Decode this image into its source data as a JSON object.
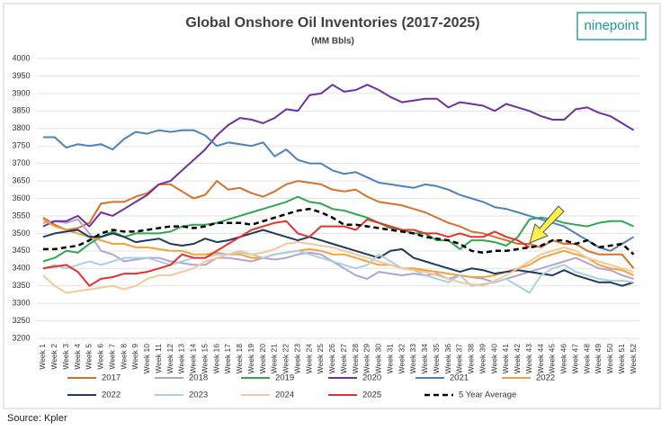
{
  "chart_data": {
    "type": "line",
    "title": "Global Onshore Oil Inventories (2017-2025)",
    "subtitle": "(MM Bbls)",
    "logo": "ninepoint",
    "source": "Source: Kpler",
    "ylim": [
      3200,
      4000
    ],
    "yticks": [
      3200,
      3250,
      3300,
      3350,
      3400,
      3450,
      3500,
      3550,
      3600,
      3650,
      3700,
      3750,
      3800,
      3850,
      3900,
      3950,
      4000
    ],
    "grid": true,
    "legend": "bottom",
    "categories": [
      "Week 1",
      "Week 2",
      "Week 3",
      "Week 4",
      "Week 5",
      "Week 6",
      "Week 7",
      "Week 8",
      "Week 9",
      "Week 10",
      "Week 11",
      "Week 12",
      "Week 13",
      "Week 14",
      "Week 15",
      "Week 16",
      "Week 17",
      "Week 18",
      "Week 19",
      "Week 20",
      "Week 21",
      "Week 22",
      "Week 23",
      "Week 24",
      "Week 25",
      "Week 26",
      "Week 27",
      "Week 28",
      "Week 29",
      "Week 30",
      "Week 31",
      "Week 32",
      "Week 33",
      "Week 34",
      "Week 35",
      "Week 36",
      "Week 37",
      "Week 38",
      "Week 39",
      "Week 40",
      "Week 41",
      "Week 42",
      "Week 43",
      "Week 44",
      "Week 45",
      "Week 46",
      "Week 47",
      "Week 48",
      "Week 49",
      "Week 50",
      "Week 51",
      "Week 52"
    ],
    "series": [
      {
        "name": "2017",
        "color": "#d9702a",
        "values": [
          3545,
          3525,
          3510,
          3515,
          3530,
          3585,
          3590,
          3590,
          3605,
          3615,
          3640,
          3640,
          3620,
          3600,
          3610,
          3650,
          3625,
          3630,
          3615,
          3605,
          3620,
          3640,
          3650,
          3645,
          3640,
          3625,
          3620,
          3625,
          3605,
          3590,
          3585,
          3580,
          3570,
          3560,
          3545,
          3530,
          3520,
          3505,
          3500,
          3490,
          3480,
          3470,
          3470,
          3460,
          3480,
          3470,
          3470,
          3450,
          3440,
          3440,
          3440,
          3400
        ]
      },
      {
        "name": "2018",
        "color": "#b3a2d6",
        "values": [
          3530,
          3535,
          3530,
          3540,
          3500,
          3450,
          3440,
          3420,
          3425,
          3430,
          3430,
          3420,
          3415,
          3410,
          3410,
          3430,
          3430,
          3425,
          3420,
          3430,
          3425,
          3430,
          3440,
          3445,
          3440,
          3420,
          3400,
          3380,
          3370,
          3390,
          3385,
          3380,
          3385,
          3380,
          3385,
          3370,
          3380,
          3375,
          3370,
          3360,
          3370,
          3380,
          3390,
          3400,
          3410,
          3420,
          3430,
          3415,
          3400,
          3395,
          3380,
          3370
        ]
      },
      {
        "name": "2019",
        "color": "#2fa84f",
        "values": [
          3420,
          3430,
          3450,
          3445,
          3470,
          3490,
          3505,
          3490,
          3500,
          3500,
          3500,
          3505,
          3520,
          3525,
          3525,
          3530,
          3540,
          3550,
          3560,
          3570,
          3580,
          3590,
          3605,
          3590,
          3585,
          3570,
          3565,
          3555,
          3545,
          3530,
          3515,
          3510,
          3500,
          3500,
          3480,
          3480,
          3455,
          3480,
          3480,
          3475,
          3465,
          3490,
          3540,
          3545,
          3540,
          3530,
          3525,
          3520,
          3530,
          3535,
          3535,
          3520
        ]
      },
      {
        "name": "2020",
        "color": "#7030a0",
        "values": [
          3520,
          3535,
          3535,
          3550,
          3520,
          3560,
          3550,
          3570,
          3590,
          3610,
          3640,
          3650,
          3680,
          3710,
          3740,
          3780,
          3810,
          3830,
          3825,
          3815,
          3830,
          3855,
          3850,
          3895,
          3900,
          3925,
          3905,
          3910,
          3925,
          3910,
          3890,
          3875,
          3880,
          3885,
          3885,
          3860,
          3875,
          3870,
          3865,
          3850,
          3870,
          3860,
          3850,
          3835,
          3825,
          3825,
          3855,
          3860,
          3845,
          3835,
          3815,
          3795
        ]
      },
      {
        "name": "2021",
        "color": "#4f81bd",
        "values": [
          3775,
          3775,
          3745,
          3755,
          3750,
          3755,
          3740,
          3770,
          3790,
          3785,
          3795,
          3790,
          3795,
          3795,
          3780,
          3750,
          3760,
          3755,
          3750,
          3760,
          3720,
          3740,
          3710,
          3700,
          3700,
          3680,
          3670,
          3675,
          3660,
          3645,
          3640,
          3635,
          3630,
          3640,
          3635,
          3625,
          3610,
          3600,
          3590,
          3575,
          3570,
          3560,
          3550,
          3540,
          3530,
          3520,
          3500,
          3480,
          3460,
          3450,
          3470,
          3490
        ]
      },
      {
        "name": "2022",
        "color": "#f2a33a",
        "values": [
          3540,
          3520,
          3510,
          3500,
          3490,
          3480,
          3470,
          3470,
          3460,
          3460,
          3455,
          3450,
          3450,
          3440,
          3440,
          3445,
          3440,
          3440,
          3430,
          3430,
          3440,
          3445,
          3450,
          3455,
          3450,
          3440,
          3440,
          3430,
          3420,
          3410,
          3410,
          3400,
          3400,
          3395,
          3390,
          3385,
          3380,
          3375,
          3375,
          3380,
          3390,
          3400,
          3410,
          3430,
          3440,
          3450,
          3440,
          3430,
          3410,
          3400,
          3395,
          3380
        ]
      },
      {
        "name": "2022",
        "color": "#1f3a5f",
        "values": [
          3490,
          3500,
          3505,
          3510,
          3490,
          3490,
          3500,
          3490,
          3475,
          3480,
          3485,
          3470,
          3465,
          3470,
          3485,
          3475,
          3480,
          3490,
          3500,
          3510,
          3500,
          3490,
          3480,
          3490,
          3480,
          3470,
          3460,
          3450,
          3440,
          3430,
          3450,
          3455,
          3430,
          3420,
          3410,
          3400,
          3390,
          3400,
          3395,
          3385,
          3390,
          3395,
          3390,
          3385,
          3380,
          3395,
          3380,
          3370,
          3360,
          3360,
          3350,
          3360
        ]
      },
      {
        "name": "2023",
        "color": "#a9cfe0",
        "values": [
          3400,
          3410,
          3400,
          3410,
          3420,
          3410,
          3420,
          3430,
          3430,
          3430,
          3420,
          3410,
          3420,
          3430,
          3430,
          3440,
          3440,
          3445,
          3440,
          3430,
          3440,
          3445,
          3450,
          3440,
          3430,
          3420,
          3410,
          3400,
          3410,
          3440,
          3420,
          3400,
          3395,
          3380,
          3370,
          3360,
          3380,
          3350,
          3355,
          3360,
          3370,
          3350,
          3330,
          3380,
          3400,
          3410,
          3390,
          3380,
          3370,
          3365,
          3365,
          3360
        ]
      },
      {
        "name": "2024",
        "color": "#f4c89a",
        "values": [
          3380,
          3350,
          3330,
          3335,
          3340,
          3345,
          3350,
          3340,
          3350,
          3370,
          3380,
          3380,
          3390,
          3400,
          3420,
          3430,
          3440,
          3450,
          3440,
          3445,
          3455,
          3470,
          3475,
          3470,
          3465,
          3460,
          3450,
          3440,
          3430,
          3420,
          3410,
          3400,
          3395,
          3390,
          3380,
          3370,
          3360,
          3355,
          3350,
          3365,
          3380,
          3400,
          3420,
          3440,
          3450,
          3460,
          3450,
          3430,
          3420,
          3410,
          3400,
          3390
        ]
      },
      {
        "name": "2025",
        "color": "#e8302a",
        "values": [
          3400,
          3405,
          3410,
          3390,
          3350,
          3370,
          3375,
          3385,
          3385,
          3390,
          3400,
          3410,
          3440,
          3430,
          3430,
          3450,
          3470,
          3490,
          3510,
          3520,
          3530,
          3535,
          3500,
          3490,
          3520,
          3520,
          3520,
          3510,
          3540,
          3530,
          3520,
          3510,
          3510,
          3500,
          3500,
          3490,
          3500,
          3490,
          3490,
          3505,
          3490,
          3480,
          3460,
          null,
          null,
          null,
          null,
          null,
          null,
          null,
          null,
          null
        ]
      },
      {
        "name": "5 Year Average",
        "color": "#000000",
        "dashed": true,
        "values": [
          3455,
          3455,
          3460,
          3465,
          3480,
          3500,
          3510,
          3505,
          3505,
          3510,
          3515,
          3520,
          3520,
          3515,
          3520,
          3530,
          3530,
          3530,
          3525,
          3535,
          3545,
          3555,
          3565,
          3570,
          3560,
          3545,
          3525,
          3525,
          3520,
          3515,
          3510,
          3505,
          3500,
          3490,
          3485,
          3480,
          3470,
          3450,
          3445,
          3450,
          3450,
          3455,
          3460,
          3465,
          3480,
          3480,
          3470,
          3480,
          3460,
          3465,
          3470,
          3440
        ]
      }
    ]
  }
}
